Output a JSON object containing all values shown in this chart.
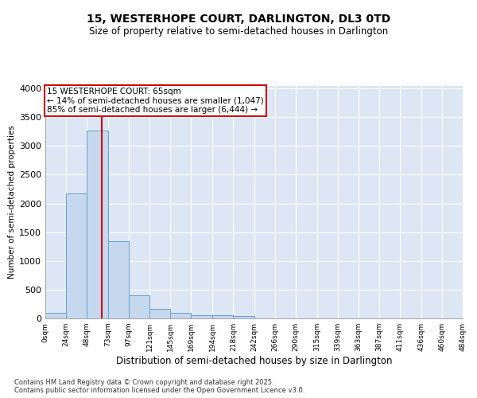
{
  "title_line1": "15, WESTERHOPE COURT, DARLINGTON, DL3 0TD",
  "title_line2": "Size of property relative to semi-detached houses in Darlington",
  "xlabel": "Distribution of semi-detached houses by size in Darlington",
  "ylabel": "Number of semi-detached properties",
  "footnote": "Contains HM Land Registry data © Crown copyright and database right 2025.\nContains public sector information licensed under the Open Government Licence v3.0.",
  "bar_values": [
    100,
    2180,
    3270,
    1340,
    400,
    165,
    95,
    60,
    50,
    35,
    5,
    0,
    0,
    0,
    0,
    0,
    0,
    0,
    0,
    0
  ],
  "bin_edges": [
    0,
    24,
    48,
    73,
    97,
    121,
    145,
    169,
    194,
    218,
    242,
    266,
    290,
    315,
    339,
    363,
    387,
    411,
    436,
    460,
    484
  ],
  "tick_labels": [
    "0sqm",
    "24sqm",
    "48sqm",
    "73sqm",
    "97sqm",
    "121sqm",
    "145sqm",
    "169sqm",
    "194sqm",
    "218sqm",
    "242sqm",
    "266sqm",
    "290sqm",
    "315sqm",
    "339sqm",
    "363sqm",
    "387sqm",
    "411sqm",
    "436sqm",
    "460sqm",
    "484sqm"
  ],
  "bar_color": "#c5d8ee",
  "bar_edge_color": "#6b9ec8",
  "vline_x": 65,
  "vline_color": "#cc0000",
  "annotation_title": "15 WESTERHOPE COURT: 65sqm",
  "annotation_line2": "← 14% of semi-detached houses are smaller (1,047)",
  "annotation_line3": "85% of semi-detached houses are larger (6,444) →",
  "annotation_box_color": "#cc0000",
  "ylim": [
    0,
    4050
  ],
  "yticks": [
    0,
    500,
    1000,
    1500,
    2000,
    2500,
    3000,
    3500,
    4000
  ],
  "background_color": "#dce6f5",
  "grid_color": "#ffffff",
  "fig_bg": "#ffffff"
}
